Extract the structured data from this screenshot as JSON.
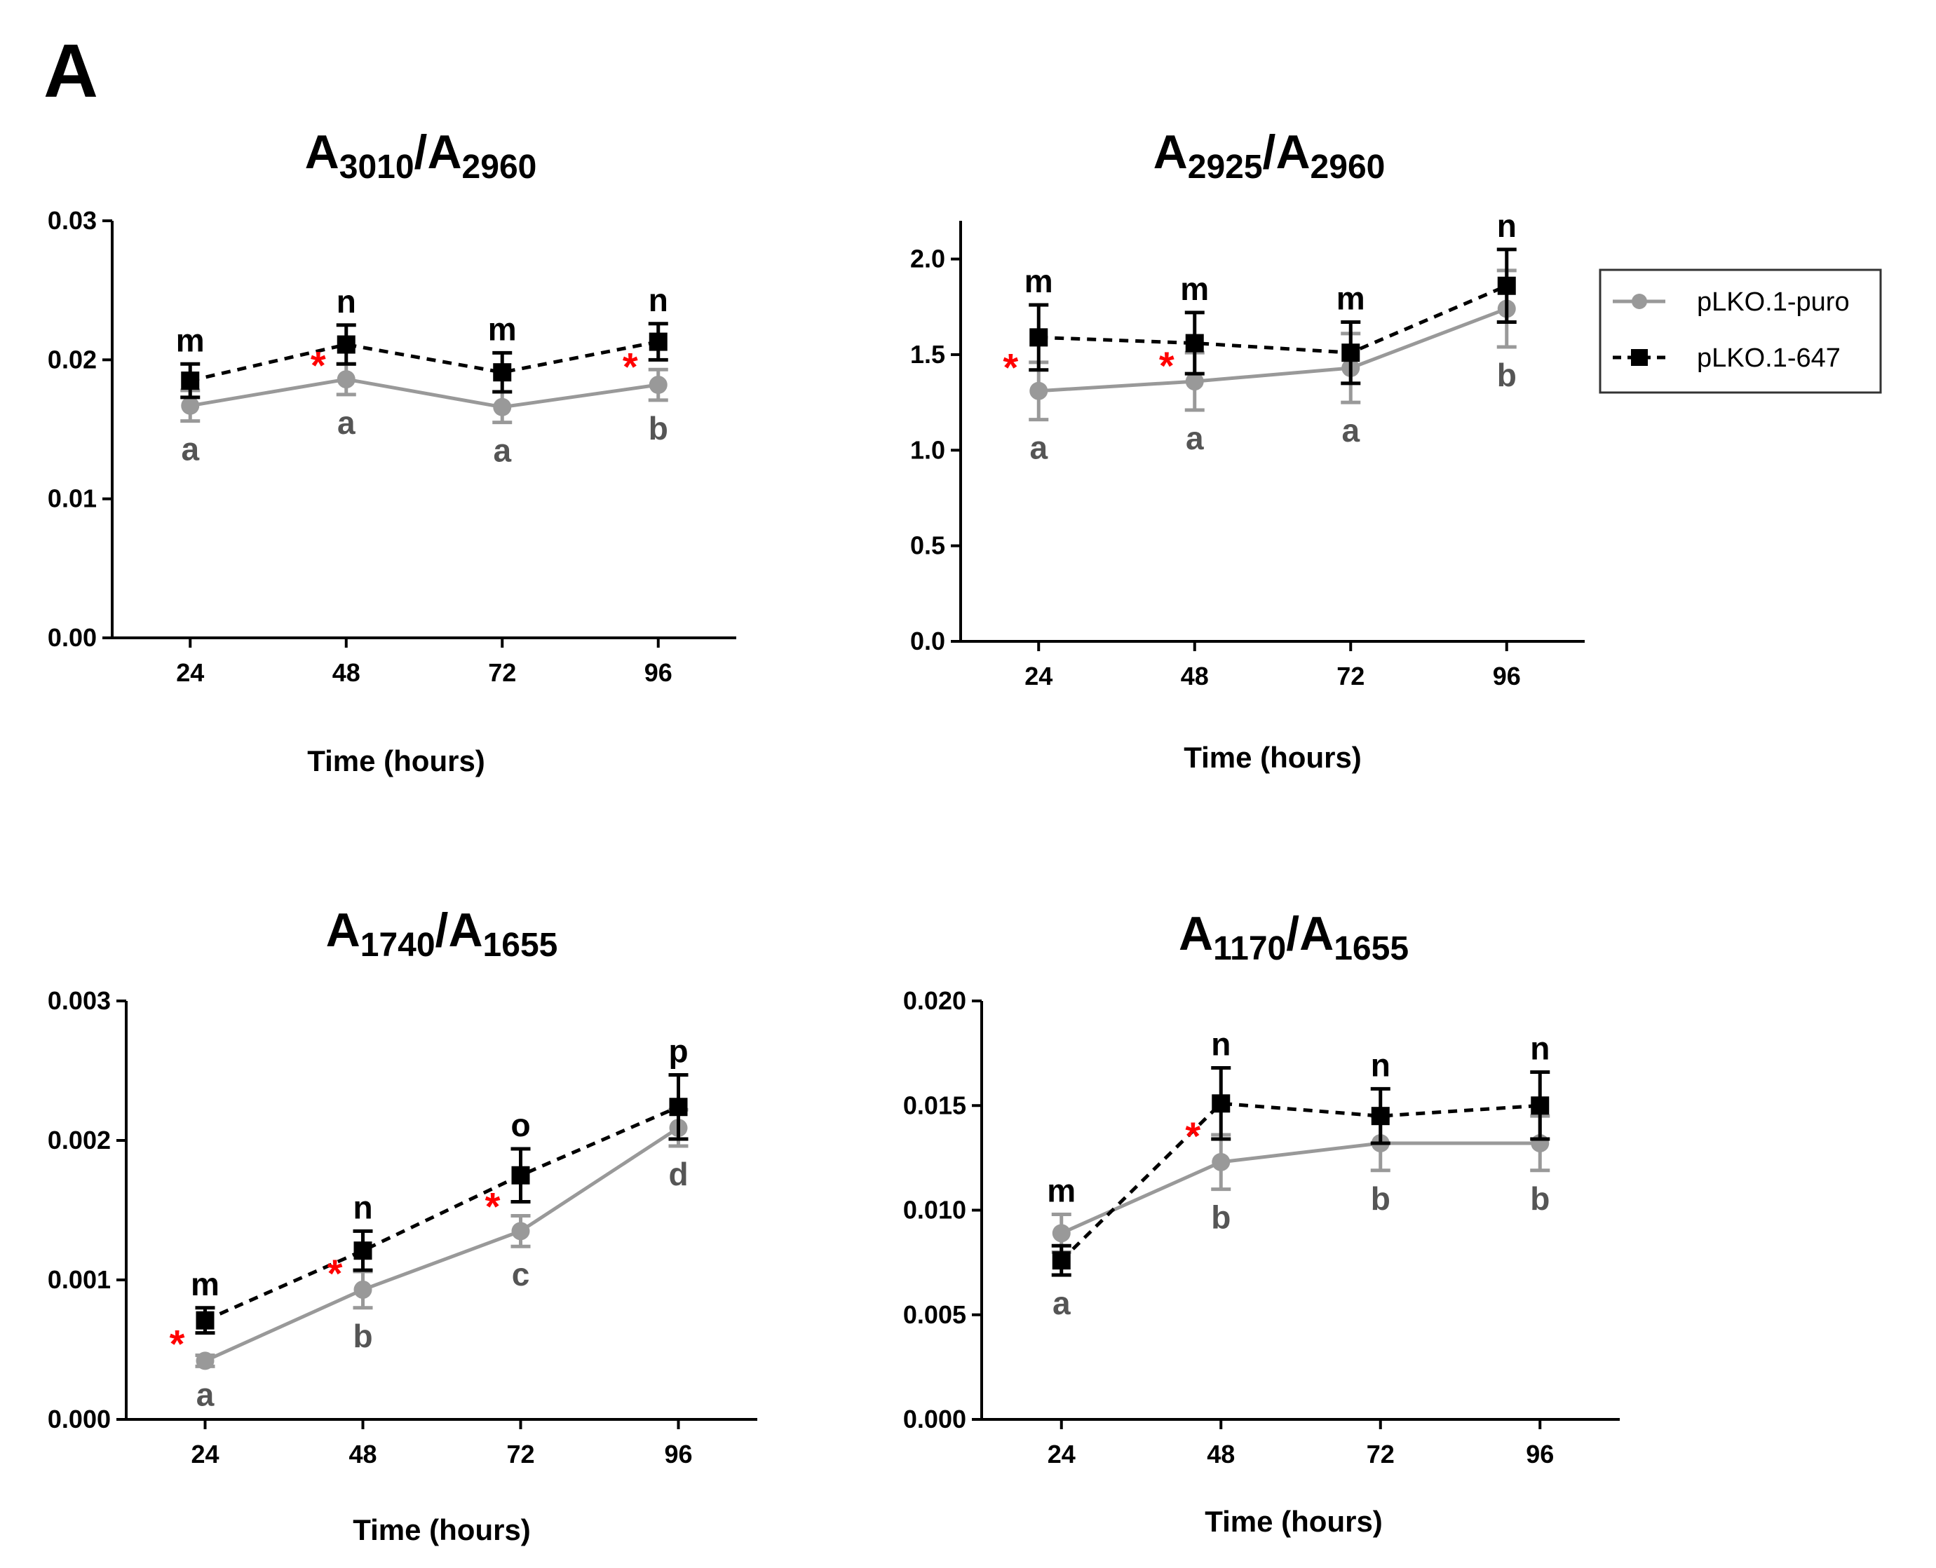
{
  "panel_letter": "A",
  "legend": {
    "entries": [
      {
        "label": "pLKO.1-puro",
        "color": "#999999",
        "marker": "circle",
        "dash": "solid"
      },
      {
        "label": "pLKO.1-647",
        "color": "#000000",
        "marker": "square",
        "dash": "dashed"
      }
    ]
  },
  "chart_data": [
    {
      "type": "line",
      "title_main": "A",
      "title_sub1": "3010",
      "title_mid": "/A",
      "title_sub2": "2960",
      "xlabel": "Time (hours)",
      "ylabel": "",
      "x": [
        24,
        48,
        72,
        96
      ],
      "ylim": [
        0,
        0.03
      ],
      "yticks": [
        "0.00",
        "0.01",
        "0.02",
        "0.03"
      ],
      "series": [
        {
          "name": "pLKO.1-puro",
          "values": [
            0.0167,
            0.0186,
            0.0166,
            0.0182
          ],
          "errors": [
            0.0011,
            0.0011,
            0.0011,
            0.0011
          ],
          "letters": [
            "a",
            "a",
            "a",
            "b"
          ]
        },
        {
          "name": "pLKO.1-647",
          "values": [
            0.0185,
            0.0211,
            0.0191,
            0.0213
          ],
          "errors": [
            0.0012,
            0.0014,
            0.0014,
            0.0013
          ],
          "letters": [
            "m",
            "n",
            "m",
            "n"
          ]
        }
      ],
      "stars": [
        48,
        96
      ]
    },
    {
      "type": "line",
      "title_main": "A",
      "title_sub1": "2925",
      "title_mid": "/A",
      "title_sub2": "2960",
      "xlabel": "Time (hours)",
      "ylabel": "",
      "x": [
        24,
        48,
        72,
        96
      ],
      "ylim": [
        0,
        2.2
      ],
      "yticks": [
        "0.0",
        "0.5",
        "1.0",
        "1.5",
        "2.0"
      ],
      "series": [
        {
          "name": "pLKO.1-puro",
          "values": [
            1.31,
            1.36,
            1.43,
            1.74
          ],
          "errors": [
            0.15,
            0.15,
            0.18,
            0.2
          ],
          "letters": [
            "a",
            "a",
            "a",
            "b"
          ]
        },
        {
          "name": "pLKO.1-647",
          "values": [
            1.59,
            1.56,
            1.51,
            1.86
          ],
          "errors": [
            0.17,
            0.16,
            0.16,
            0.19
          ],
          "letters": [
            "m",
            "m",
            "m",
            "n"
          ]
        }
      ],
      "stars": [
        24,
        48
      ]
    },
    {
      "type": "line",
      "title_main": "A",
      "title_sub1": "1740",
      "title_mid": "/A",
      "title_sub2": "1655",
      "xlabel": "Time (hours)",
      "ylabel": "",
      "x": [
        24,
        48,
        72,
        96
      ],
      "ylim": [
        0,
        0.003
      ],
      "yticks": [
        "0.000",
        "0.001",
        "0.002",
        "0.003"
      ],
      "series": [
        {
          "name": "pLKO.1-puro",
          "values": [
            0.00042,
            0.00093,
            0.00135,
            0.00209
          ],
          "errors": [
            4e-05,
            0.00013,
            0.00011,
            0.00013
          ],
          "letters": [
            "a",
            "b",
            "c",
            "d"
          ]
        },
        {
          "name": "pLKO.1-647",
          "values": [
            0.00071,
            0.00121,
            0.00175,
            0.00224
          ],
          "errors": [
            9e-05,
            0.00014,
            0.00019,
            0.00023
          ],
          "letters": [
            "m",
            "n",
            "o",
            "p"
          ]
        }
      ],
      "stars": [
        24,
        48,
        72
      ]
    },
    {
      "type": "line",
      "title_main": "A",
      "title_sub1": "1170",
      "title_mid": "/A",
      "title_sub2": "1655",
      "xlabel": "Time (hours)",
      "ylabel": "",
      "x": [
        24,
        48,
        72,
        96
      ],
      "ylim": [
        0,
        0.02
      ],
      "yticks": [
        "0.000",
        "0.005",
        "0.010",
        "0.015",
        "0.020"
      ],
      "series": [
        {
          "name": "pLKO.1-puro",
          "values": [
            0.0089,
            0.0123,
            0.0132,
            0.0132
          ],
          "errors": [
            0.0009,
            0.0013,
            0.0013,
            0.0013
          ],
          "letters": [
            "a",
            "b",
            "b",
            "b"
          ]
        },
        {
          "name": "pLKO.1-647",
          "values": [
            0.0076,
            0.0151,
            0.0145,
            0.015
          ],
          "errors": [
            0.0007,
            0.0017,
            0.0013,
            0.0016
          ],
          "letters": [
            "m",
            "n",
            "n",
            "n"
          ]
        }
      ],
      "stars": [
        48
      ]
    }
  ]
}
